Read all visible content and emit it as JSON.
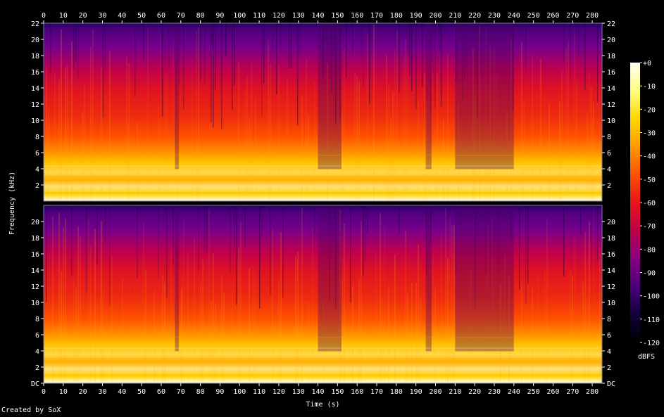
{
  "chart_data": {
    "type": "heatmap",
    "title": "",
    "xlabel": "Time (s)",
    "ylabel": "Frequency (kHz)",
    "xlim": [
      0,
      285
    ],
    "x_ticks": [
      0,
      10,
      20,
      30,
      40,
      50,
      60,
      70,
      80,
      90,
      100,
      110,
      120,
      130,
      140,
      150,
      160,
      170,
      180,
      190,
      200,
      210,
      220,
      230,
      240,
      250,
      260,
      270,
      280
    ],
    "ylim": [
      0,
      22
    ],
    "channels": [
      {
        "left_tick_labels": [
          "22",
          "20",
          "18",
          "16",
          "14",
          "12",
          "10",
          "8",
          "6",
          "4",
          "2"
        ],
        "right_tick_labels": [
          "22",
          "20",
          "18",
          "16",
          "14",
          "12",
          "10",
          "8",
          "6",
          "4",
          "2"
        ]
      },
      {
        "left_tick_labels": [
          "20",
          "18",
          "16",
          "14",
          "12",
          "10",
          "8",
          "6",
          "4",
          "2",
          "DC"
        ],
        "right_tick_labels": [
          "20",
          "18",
          "16",
          "14",
          "12",
          "10",
          "8",
          "6",
          "4",
          "2",
          "DC"
        ]
      }
    ],
    "colorbar": {
      "label": "dBFS",
      "range": [
        -120,
        0
      ],
      "tick_labels": [
        "+0",
        "-10",
        "-20",
        "-30",
        "-40",
        "-50",
        "-60",
        "-70",
        "-80",
        "-90",
        "-100",
        "-110",
        "-120"
      ]
    },
    "quiet_segments_s": [
      [
        67,
        69
      ],
      [
        140,
        152
      ],
      [
        195,
        198
      ],
      [
        210,
        240
      ]
    ],
    "colors": {
      "background": "#000000",
      "text": "#ffffff",
      "frame": "#7a7aa8",
      "palette": [
        "#fffff4",
        "#ffff80",
        "#ffd700",
        "#ff9b00",
        "#ff5000",
        "#e8141c",
        "#c00048",
        "#880080",
        "#4a007c",
        "#12003c",
        "#000000"
      ]
    }
  },
  "footer": {
    "credit": "Created by SoX"
  }
}
